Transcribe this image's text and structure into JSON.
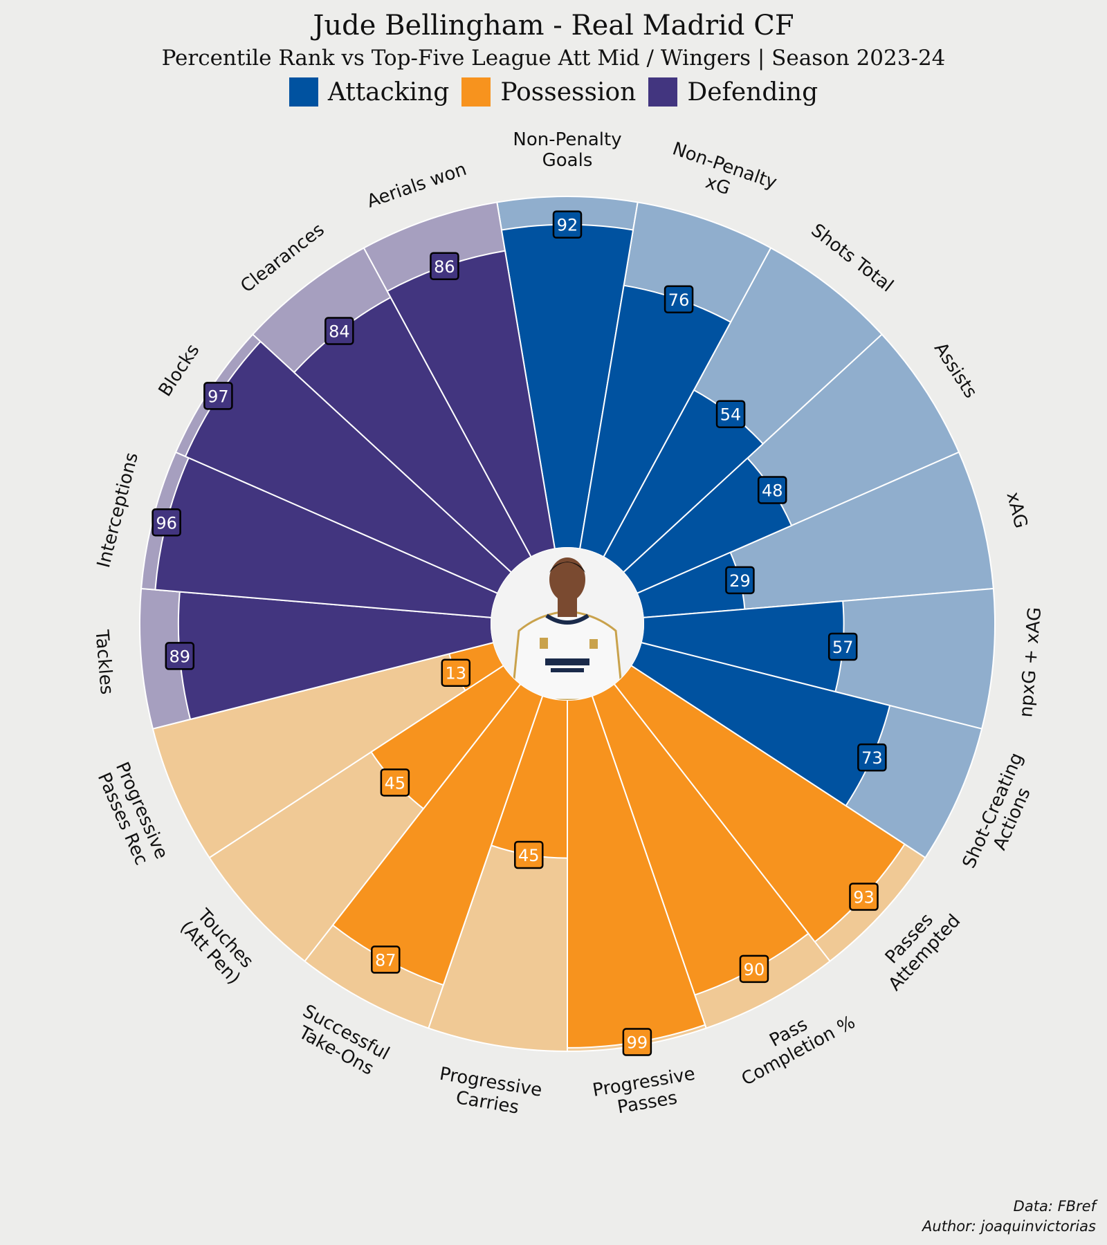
{
  "title": "Jude Bellingham - Real Madrid CF",
  "subtitle": "Percentile Rank vs Top-Five League Att Mid / Wingers | Season 2023-24",
  "legend": [
    {
      "label": "Attacking",
      "color": "#0052a0"
    },
    {
      "label": "Possession",
      "color": "#f7931e"
    },
    {
      "label": "Defending",
      "color": "#42357f"
    }
  ],
  "colors": {
    "attacking": "#0052a0",
    "attacking_bg": "#90aecd",
    "possession": "#f7931e",
    "possession_bg": "#f0c995",
    "defending": "#42357f",
    "defending_bg": "#a69fbf"
  },
  "chart_data": {
    "type": "radial-bar",
    "rlim": [
      0,
      100
    ],
    "categories": [
      {
        "label": "Non-Penalty\nGoals",
        "group": "attacking",
        "value": 92
      },
      {
        "label": "Non-Penalty\nxG",
        "group": "attacking",
        "value": 76
      },
      {
        "label": "Shots Total",
        "group": "attacking",
        "value": 54
      },
      {
        "label": "Assists",
        "group": "attacking",
        "value": 48
      },
      {
        "label": "xAG",
        "group": "attacking",
        "value": 29
      },
      {
        "label": "npxG + xAG",
        "group": "attacking",
        "value": 57
      },
      {
        "label": "Shot-Creating\nActions",
        "group": "attacking",
        "value": 73
      },
      {
        "label": "Passes\nAttempted",
        "group": "possession",
        "value": 93
      },
      {
        "label": "Pass\nCompletion %",
        "group": "possession",
        "value": 90
      },
      {
        "label": "Progressive\nPasses",
        "group": "possession",
        "value": 99
      },
      {
        "label": "Progressive\nCarries",
        "group": "possession",
        "value": 45
      },
      {
        "label": "Successful\nTake-Ons",
        "group": "possession",
        "value": 87
      },
      {
        "label": "Touches\n(Att Pen)",
        "group": "possession",
        "value": 45
      },
      {
        "label": "Progressive\nPasses Rec",
        "group": "possession",
        "value": 13
      },
      {
        "label": "Tackles",
        "group": "defending",
        "value": 89
      },
      {
        "label": "Interceptions",
        "group": "defending",
        "value": 96
      },
      {
        "label": "Blocks",
        "group": "defending",
        "value": 97
      },
      {
        "label": "Clearances",
        "group": "defending",
        "value": 84
      },
      {
        "label": "Aerials won",
        "group": "defending",
        "value": 86
      }
    ]
  },
  "credits": {
    "data": "Data: FBref",
    "author": "Author: joaquinvictorias"
  }
}
